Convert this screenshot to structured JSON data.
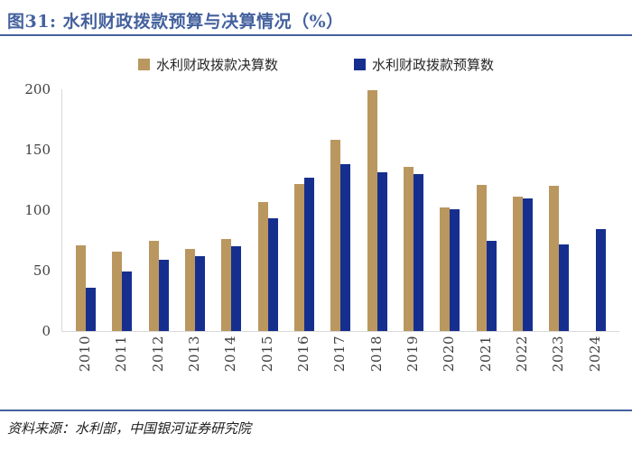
{
  "header": {
    "title": "图31: 水利财政拨款预算与决算情况（%）"
  },
  "footer": {
    "source": "资料来源：水利部，中国银河证券研究院"
  },
  "colors": {
    "accent_blue": "#44619E",
    "bar_final": "#B9975F",
    "bar_budget": "#162F8F",
    "axis_line": "#D9D9D9",
    "tick_text": "#3f3f3f"
  },
  "chart_data": {
    "type": "bar",
    "title": "水利财政拨款预算与决算情况（%）",
    "categories": [
      "2010",
      "2011",
      "2012",
      "2013",
      "2014",
      "2015",
      "2016",
      "2017",
      "2018",
      "2019",
      "2020",
      "2021",
      "2022",
      "2023",
      "2024"
    ],
    "series": [
      {
        "name": "水利财政拨款决算数",
        "color_key": "bar_final",
        "values": [
          71,
          66,
          75,
          68,
          76,
          107,
          122,
          158,
          199,
          136,
          102,
          121,
          111,
          120,
          null
        ]
      },
      {
        "name": "水利财政拨款预算数",
        "color_key": "bar_budget",
        "values": [
          36,
          49,
          59,
          62,
          70,
          93,
          127,
          138,
          131,
          130,
          101,
          75,
          110,
          72,
          84
        ]
      }
    ],
    "xlabel": "",
    "ylabel": "",
    "ylim": [
      0,
      200
    ],
    "yticks": [
      0,
      50,
      100,
      150,
      200
    ],
    "grid": false,
    "legend_position": "top"
  }
}
